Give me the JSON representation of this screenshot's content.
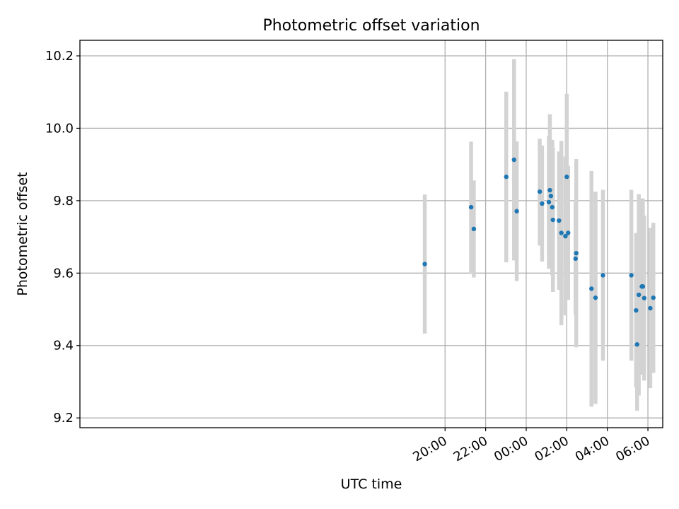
{
  "chart_data": {
    "type": "scatter",
    "title": "Photometric offset variation",
    "xlabel": "UTC time",
    "ylabel": "Photometric offset",
    "x_unit": "hours relative to 00:00 UTC",
    "xlim": [
      -22.0,
      6.73
    ],
    "ylim": [
      9.173,
      10.243
    ],
    "x_ticks": [
      {
        "value": -4,
        "label": "20:00"
      },
      {
        "value": -2,
        "label": "22:00"
      },
      {
        "value": 0,
        "label": "00:00"
      },
      {
        "value": 2,
        "label": "02:00"
      },
      {
        "value": 4,
        "label": "04:00"
      },
      {
        "value": 6,
        "label": "06:00"
      }
    ],
    "y_ticks": [
      {
        "value": 9.2,
        "label": "9.2"
      },
      {
        "value": 9.4,
        "label": "9.4"
      },
      {
        "value": 9.6,
        "label": "9.6"
      },
      {
        "value": 9.8,
        "label": "9.8"
      },
      {
        "value": 10.0,
        "label": "10.0"
      },
      {
        "value": 10.2,
        "label": "10.2"
      }
    ],
    "grid": true,
    "marker_color": "#1f77b4",
    "errorbar_color": "#d3d3d3",
    "points": [
      {
        "time": "19:00",
        "y": 9.625,
        "err_low": 9.433,
        "err_high": 9.817
      },
      {
        "time": "21:17",
        "y": 9.782,
        "err_low": 9.598,
        "err_high": 9.963
      },
      {
        "time": "21:25",
        "y": 9.722,
        "err_low": 9.588,
        "err_high": 9.856
      },
      {
        "time": "23:01",
        "y": 9.866,
        "err_low": 9.63,
        "err_high": 10.101
      },
      {
        "time": "23:24",
        "y": 9.913,
        "err_low": 9.635,
        "err_high": 10.191
      },
      {
        "time": "23:32",
        "y": 9.771,
        "err_low": 9.578,
        "err_high": 9.964
      },
      {
        "time": "00:40",
        "y": 9.825,
        "err_low": 9.676,
        "err_high": 9.971
      },
      {
        "time": "00:47",
        "y": 9.792,
        "err_low": 9.632,
        "err_high": 9.952
      },
      {
        "time": "01:07",
        "y": 9.796,
        "err_low": 9.612,
        "err_high": 9.979
      },
      {
        "time": "01:10",
        "y": 9.829,
        "err_low": 9.62,
        "err_high": 10.039
      },
      {
        "time": "01:13",
        "y": 9.813,
        "err_low": 9.667,
        "err_high": 9.96
      },
      {
        "time": "01:17",
        "y": 9.782,
        "err_low": 9.594,
        "err_high": 9.968
      },
      {
        "time": "01:19",
        "y": 9.747,
        "err_low": 9.548,
        "err_high": 9.947
      },
      {
        "time": "01:37",
        "y": 9.745,
        "err_low": 9.554,
        "err_high": 9.936
      },
      {
        "time": "01:44",
        "y": 9.711,
        "err_low": 9.456,
        "err_high": 9.965
      },
      {
        "time": "01:56",
        "y": 9.702,
        "err_low": 9.483,
        "err_high": 9.922
      },
      {
        "time": "02:00",
        "y": 9.866,
        "err_low": 9.637,
        "err_high": 10.095
      },
      {
        "time": "02:04",
        "y": 9.711,
        "err_low": 9.526,
        "err_high": 9.896
      },
      {
        "time": "02:26",
        "y": 9.64,
        "err_low": 9.484,
        "err_high": 9.797
      },
      {
        "time": "02:28",
        "y": 9.655,
        "err_low": 9.395,
        "err_high": 9.915
      },
      {
        "time": "03:13",
        "y": 9.557,
        "err_low": 9.231,
        "err_high": 9.882
      },
      {
        "time": "03:25",
        "y": 9.532,
        "err_low": 9.239,
        "err_high": 9.825
      },
      {
        "time": "03:47",
        "y": 9.594,
        "err_low": 9.358,
        "err_high": 9.83
      },
      {
        "time": "05:11",
        "y": 9.594,
        "err_low": 9.358,
        "err_high": 9.83
      },
      {
        "time": "05:25",
        "y": 9.497,
        "err_low": 9.284,
        "err_high": 9.711
      },
      {
        "time": "05:28",
        "y": 9.403,
        "err_low": 9.22,
        "err_high": 9.586
      },
      {
        "time": "05:33",
        "y": 9.54,
        "err_low": 9.262,
        "err_high": 9.818
      },
      {
        "time": "05:42",
        "y": 9.563,
        "err_low": 9.32,
        "err_high": 9.806
      },
      {
        "time": "05:45",
        "y": 9.563,
        "err_low": 9.32,
        "err_high": 9.806
      },
      {
        "time": "05:49",
        "y": 9.531,
        "err_low": 9.303,
        "err_high": 9.759
      },
      {
        "time": "06:07",
        "y": 9.503,
        "err_low": 9.282,
        "err_high": 9.725
      },
      {
        "time": "06:16",
        "y": 9.532,
        "err_low": 9.324,
        "err_high": 9.739
      }
    ]
  }
}
